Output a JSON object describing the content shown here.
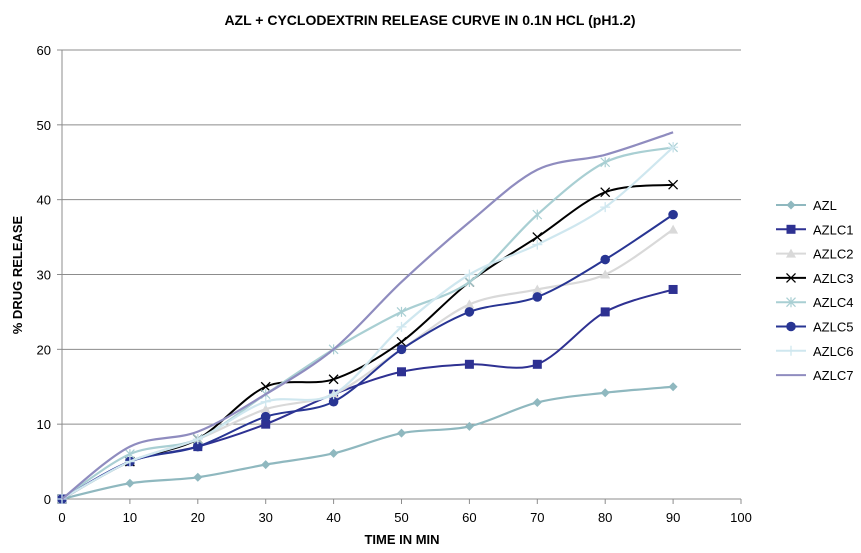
{
  "chart_data": {
    "type": "line",
    "title": "AZL + CYCLODEXTRIN RELEASE CURVE IN 0.1N HCL (pH1.2)",
    "xlabel": "TIME IN MIN",
    "ylabel": "% DRUG RELEASE",
    "xlim": [
      0,
      100
    ],
    "ylim": [
      0,
      60
    ],
    "xticks": [
      0,
      10,
      20,
      30,
      40,
      50,
      60,
      70,
      80,
      90,
      100
    ],
    "yticks": [
      0,
      10,
      20,
      30,
      40,
      50,
      60
    ],
    "grid": "horizontal",
    "legend_position": "right",
    "x": [
      0,
      10,
      20,
      30,
      40,
      50,
      60,
      70,
      80,
      90
    ],
    "series": [
      {
        "name": "AZL",
        "color": "#8fb8bf",
        "marker": "diamond",
        "values": [
          0,
          2.1,
          2.9,
          4.6,
          6.1,
          8.8,
          9.7,
          12.9,
          14.2,
          15
        ]
      },
      {
        "name": "AZLC1",
        "color": "#2e3192",
        "marker": "square",
        "values": [
          0,
          5,
          7,
          10,
          14,
          17,
          18,
          18,
          25,
          28
        ]
      },
      {
        "name": "AZLC2",
        "color": "#d9d9d9",
        "marker": "triangle",
        "values": [
          0,
          5,
          8,
          12,
          14,
          20,
          26,
          28,
          30,
          36
        ]
      },
      {
        "name": "AZLC3",
        "color": "#000000",
        "marker": "x",
        "values": [
          0,
          5,
          8,
          15,
          16,
          21,
          29,
          35,
          41,
          42
        ]
      },
      {
        "name": "AZLC4",
        "color": "#a9cfd3",
        "marker": "star",
        "values": [
          0,
          6,
          8,
          14,
          20,
          25,
          29,
          38,
          45,
          47
        ]
      },
      {
        "name": "AZLC5",
        "color": "#283593",
        "marker": "circle",
        "values": [
          0,
          5,
          7,
          11,
          13,
          20,
          25,
          27,
          32,
          38
        ]
      },
      {
        "name": "AZLC6",
        "color": "#cfe7ef",
        "marker": "plus",
        "values": [
          0,
          5,
          8,
          13,
          14,
          23,
          30,
          34,
          39,
          47
        ]
      },
      {
        "name": "AZLC7",
        "color": "#8f8cbf",
        "marker": "none",
        "values": [
          0,
          7,
          9,
          14,
          20,
          29,
          37,
          44,
          46,
          49
        ]
      }
    ]
  }
}
